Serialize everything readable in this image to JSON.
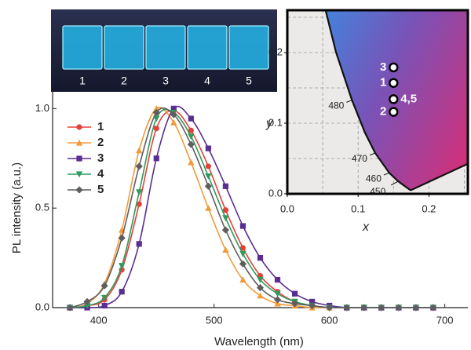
{
  "inset_photo": {
    "labels": [
      "1",
      "2",
      "3",
      "4",
      "5"
    ]
  },
  "chart_data": [
    {
      "type": "line",
      "x_label": "Wavelength (nm)",
      "y_label": "PL intensity (a.u.)",
      "x": [
        375,
        390,
        405,
        420,
        435,
        450,
        465,
        480,
        495,
        510,
        525,
        540,
        555,
        570,
        585,
        600,
        615,
        630,
        645,
        660,
        675,
        690
      ],
      "series": [
        {
          "name": "1",
          "color": "#e5403b",
          "marker": "circle",
          "values": [
            0.0,
            0.01,
            0.04,
            0.19,
            0.52,
            0.9,
            0.99,
            0.89,
            0.71,
            0.49,
            0.3,
            0.16,
            0.08,
            0.03,
            0.01,
            0.0,
            0.0,
            0.0,
            0.0,
            0.0,
            0.0,
            0.0
          ]
        },
        {
          "name": "2",
          "color": "#f29a3c",
          "marker": "triangle-up",
          "values": [
            0.0,
            0.02,
            0.12,
            0.39,
            0.79,
            1.0,
            0.93,
            0.73,
            0.5,
            0.29,
            0.14,
            0.06,
            0.02,
            0.01,
            0.0,
            0.0,
            0.0,
            0.0,
            0.0,
            0.0,
            0.0,
            0.0
          ]
        },
        {
          "name": "3",
          "color": "#5a2d92",
          "marker": "square",
          "values": [
            0.0,
            0.0,
            0.01,
            0.08,
            0.32,
            0.75,
            1.0,
            0.95,
            0.8,
            0.61,
            0.41,
            0.25,
            0.14,
            0.07,
            0.03,
            0.01,
            0.0,
            0.0,
            0.0,
            0.0,
            0.0,
            0.0
          ]
        },
        {
          "name": "4",
          "color": "#2f9a5c",
          "marker": "triangle-down",
          "values": [
            0.0,
            0.01,
            0.05,
            0.21,
            0.58,
            0.95,
            0.98,
            0.86,
            0.66,
            0.45,
            0.27,
            0.14,
            0.07,
            0.03,
            0.01,
            0.0,
            0.0,
            0.0,
            0.0,
            0.0,
            0.0,
            0.0
          ]
        },
        {
          "name": "5",
          "color": "#5e5e5e",
          "marker": "diamond",
          "values": [
            0.0,
            0.03,
            0.11,
            0.35,
            0.71,
            0.98,
            0.97,
            0.82,
            0.61,
            0.39,
            0.22,
            0.1,
            0.04,
            0.02,
            0.01,
            0.0,
            0.0,
            0.0,
            0.0,
            0.0,
            0.0,
            0.0
          ]
        }
      ],
      "xlim": [
        360,
        720
      ],
      "ylim": [
        0,
        1.1
      ],
      "xticks": [
        400,
        500,
        600,
        700
      ],
      "yticks": [
        {
          "value": 0,
          "label": "0.0"
        },
        {
          "value": 0.5,
          "label": "0.5"
        },
        {
          "value": 1,
          "label": "1.0"
        }
      ]
    },
    {
      "type": "scatter",
      "x_label": "x",
      "y_label": "y",
      "xlim": [
        0,
        0.255
      ],
      "ylim": [
        0,
        0.26
      ],
      "xticks": [
        {
          "value": 0,
          "label": "0.0"
        },
        {
          "value": 0.1,
          "label": "0.1"
        },
        {
          "value": 0.2,
          "label": "0.2"
        }
      ],
      "yticks": [
        {
          "value": 0,
          "label": "0.0"
        },
        {
          "value": 0.1,
          "label": "0.1"
        },
        {
          "value": 0.2,
          "label": "0.2"
        }
      ],
      "xgrid": [
        0.05,
        0.1,
        0.15,
        0.2,
        0.25
      ],
      "ygrid": [
        0.05,
        0.1,
        0.15,
        0.2,
        0.25
      ],
      "locus": {
        "x": [
          0.1741,
          0.1566,
          0.144,
          0.1241,
          0.1096,
          0.0913,
          0.0687,
          0.0454
        ],
        "y": [
          0.005,
          0.0177,
          0.0297,
          0.0578,
          0.0868,
          0.1327,
          0.2007,
          0.295
        ],
        "labels": [
          null,
          "450",
          "460",
          "470",
          null,
          "480",
          null,
          null
        ]
      },
      "x": [
        0.15,
        0.15,
        0.15,
        0.15
      ],
      "y": [
        0.179,
        0.157,
        0.134,
        0.116
      ],
      "point_labels": [
        "3",
        "1",
        "4,5",
        "2"
      ]
    }
  ]
}
